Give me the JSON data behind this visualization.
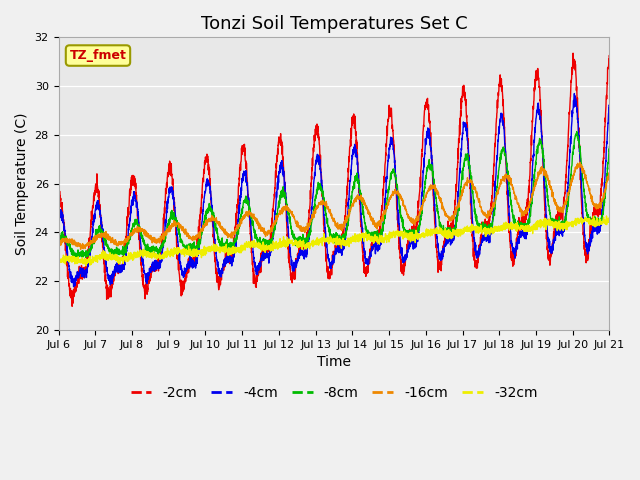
{
  "title": "Tonzi Soil Temperatures Set C",
  "xlabel": "Time",
  "ylabel": "Soil Temperature (C)",
  "ylim": [
    20,
    32
  ],
  "colors": {
    "-2cm": "#ee0000",
    "-4cm": "#0000ee",
    "-8cm": "#00bb00",
    "-16cm": "#ee8800",
    "-32cm": "#eeee00"
  },
  "legend_labels": [
    "-2cm",
    "-4cm",
    "-8cm",
    "-16cm",
    "-32cm"
  ],
  "plot_bg": "#e8e8e8",
  "annotation_text": "TZ_fmet",
  "annotation_bg": "#ffff99",
  "annotation_border": "#999900",
  "x_tick_labels": [
    "Jul 6",
    "Jul 7",
    "Jul 8",
    "Jul 9",
    "Jul 10",
    "Jul 11",
    "Jul 12",
    "Jul 13",
    "Jul 14",
    "Jul 15",
    "Jul 16",
    "Jul 17",
    "Jul 18",
    "Jul 19",
    "Jul 20",
    "Jul 21"
  ],
  "title_fontsize": 13,
  "axis_fontsize": 10,
  "tick_fontsize": 8,
  "legend_fontsize": 10
}
